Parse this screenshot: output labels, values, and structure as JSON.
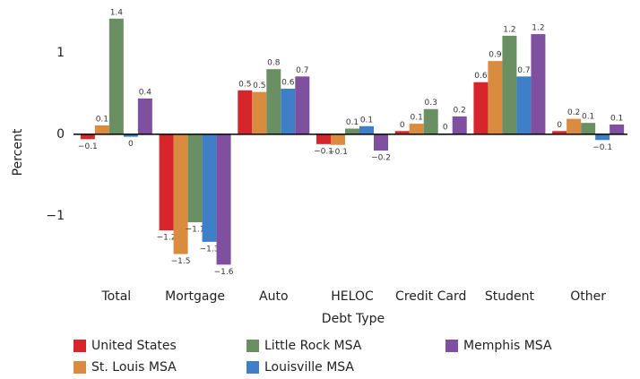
{
  "chart_data": {
    "type": "bar",
    "xlabel": "Debt Type",
    "ylabel": "Percent",
    "categories": [
      "Total",
      "Mortgage",
      "Auto",
      "HELOC",
      "Credit Card",
      "Student",
      "Other"
    ],
    "series": [
      {
        "name": "United States",
        "color": "#d7262b",
        "values": [
          -0.06,
          -1.18,
          0.54,
          -0.12,
          0.04,
          0.64,
          0.04
        ],
        "value_labels": [
          "−0.1",
          "−1.2",
          "0.5",
          "−0.1",
          "0",
          "0.6",
          "0"
        ]
      },
      {
        "name": "St. Louis MSA",
        "color": "#d98c3f",
        "values": [
          0.11,
          -1.47,
          0.52,
          -0.13,
          0.13,
          0.9,
          0.19
        ],
        "value_labels": [
          "0.1",
          "−1.5",
          "0.5",
          "−0.1",
          "0.1",
          "0.9",
          "0.2"
        ]
      },
      {
        "name": "Little Rock MSA",
        "color": "#6a8f63",
        "values": [
          1.42,
          -1.08,
          0.8,
          0.07,
          0.31,
          1.21,
          0.14
        ],
        "value_labels": [
          "1.4",
          "−1.1",
          "0.8",
          "0.1",
          "0.3",
          "1.2",
          "0.1"
        ]
      },
      {
        "name": "Louisville MSA",
        "color": "#3f7fc7",
        "values": [
          -0.03,
          -1.32,
          0.56,
          0.1,
          0.01,
          0.71,
          -0.07
        ],
        "value_labels": [
          "0",
          "−1.3",
          "0.6",
          "0.1",
          "0",
          "0.7",
          "−0.1"
        ]
      },
      {
        "name": "Memphis MSA",
        "color": "#7f4fa0",
        "values": [
          0.44,
          -1.6,
          0.71,
          -0.2,
          0.22,
          1.23,
          0.12
        ],
        "value_labels": [
          "0.4",
          "−1.6",
          "0.7",
          "−0.2",
          "0.2",
          "1.2",
          "0.1"
        ]
      }
    ],
    "ylim": [
      -1.75,
      1.55
    ],
    "yticks": [
      {
        "value": -1,
        "label": "−1"
      },
      0,
      1
    ]
  }
}
